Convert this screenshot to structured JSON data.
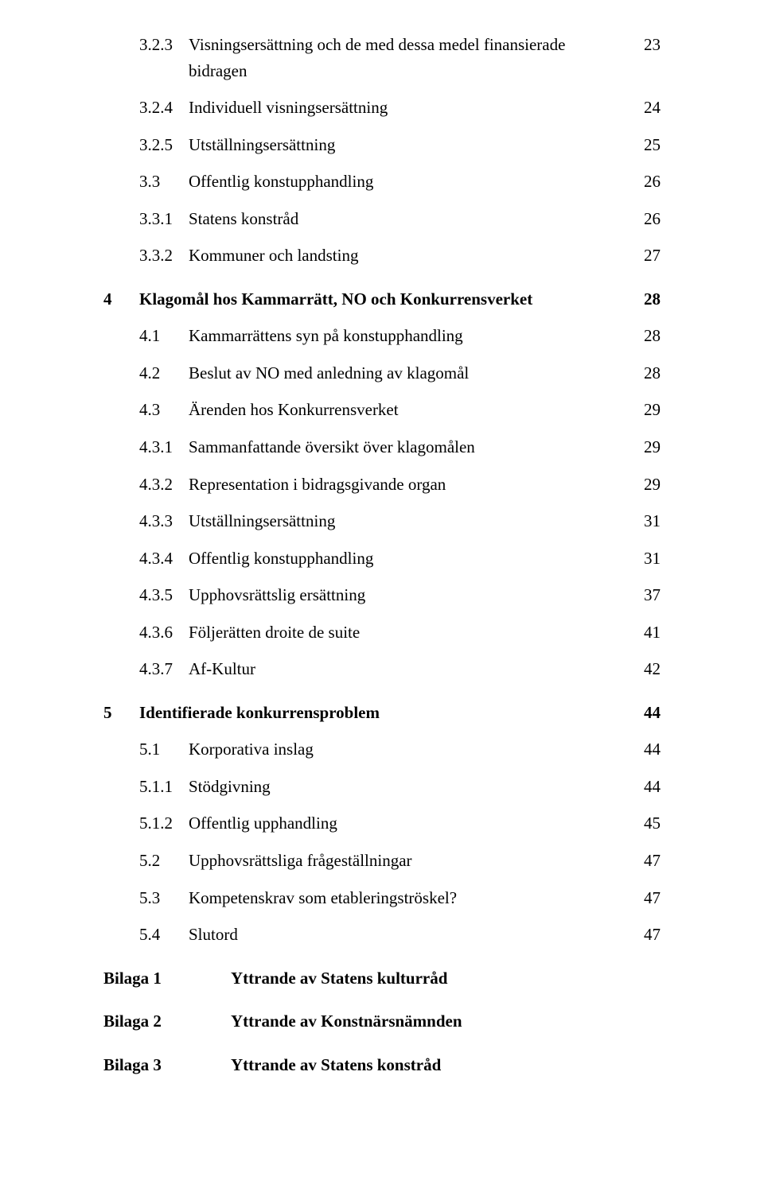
{
  "toc": [
    {
      "num": "3.2.3",
      "title": "Visningsersättning och de med dessa medel finansierade bidragen",
      "page": "23",
      "level": 3,
      "bold": false
    },
    {
      "num": "3.2.4",
      "title": "Individuell visningsersättning",
      "page": "24",
      "level": 3,
      "bold": false
    },
    {
      "num": "3.2.5",
      "title": "Utställningsersättning",
      "page": "25",
      "level": 3,
      "bold": false
    },
    {
      "num": "3.3",
      "title": "Offentlig konstupphandling",
      "page": "26",
      "level": 2,
      "bold": false
    },
    {
      "num": "3.3.1",
      "title": "Statens konstråd",
      "page": "26",
      "level": 3,
      "bold": false
    },
    {
      "num": "3.3.2",
      "title": "Kommuner och landsting",
      "page": "27",
      "level": 3,
      "bold": false
    },
    {
      "num": "4",
      "title": "Klagomål hos Kammarrätt, NO och Konkurrensverket",
      "page": "28",
      "level": 1,
      "bold": true,
      "gap": true
    },
    {
      "num": "4.1",
      "title": "Kammarrättens syn på konstupphandling",
      "page": "28",
      "level": 2,
      "bold": false
    },
    {
      "num": "4.2",
      "title": "Beslut av NO med anledning av klagomål",
      "page": "28",
      "level": 2,
      "bold": false
    },
    {
      "num": "4.3",
      "title": "Ärenden hos Konkurrensverket",
      "page": "29",
      "level": 2,
      "bold": false
    },
    {
      "num": "4.3.1",
      "title": "Sammanfattande översikt över klagomålen",
      "page": "29",
      "level": 3,
      "bold": false
    },
    {
      "num": "4.3.2",
      "title": "Representation i bidragsgivande organ",
      "page": "29",
      "level": 3,
      "bold": false
    },
    {
      "num": "4.3.3",
      "title": "Utställningsersättning",
      "page": "31",
      "level": 3,
      "bold": false
    },
    {
      "num": "4.3.4",
      "title": "Offentlig konstupphandling",
      "page": "31",
      "level": 3,
      "bold": false
    },
    {
      "num": "4.3.5",
      "title": "Upphovsrättslig ersättning",
      "page": "37",
      "level": 3,
      "bold": false
    },
    {
      "num": "4.3.6",
      "title": "Följerätten droite de suite",
      "page": "41",
      "level": 3,
      "bold": false
    },
    {
      "num": "4.3.7",
      "title": "Af-Kultur",
      "page": "42",
      "level": 3,
      "bold": false
    },
    {
      "num": "5",
      "title": "Identifierade konkurrensproblem",
      "page": "44",
      "level": 1,
      "bold": true,
      "gap": true
    },
    {
      "num": "5.1",
      "title": "Korporativa inslag",
      "page": "44",
      "level": 2,
      "bold": false
    },
    {
      "num": "5.1.1",
      "title": "Stödgivning",
      "page": "44",
      "level": 3,
      "bold": false
    },
    {
      "num": "5.1.2",
      "title": "Offentlig upphandling",
      "page": "45",
      "level": 3,
      "bold": false
    },
    {
      "num": "5.2",
      "title": "Upphovsrättsliga frågeställningar",
      "page": "47",
      "level": 2,
      "bold": false
    },
    {
      "num": "5.3",
      "title": "Kompetenskrav som etableringströskel?",
      "page": "47",
      "level": 2,
      "bold": false
    },
    {
      "num": "5.4",
      "title": "Slutord",
      "page": "47",
      "level": 2,
      "bold": false
    }
  ],
  "appendices": [
    {
      "label": "Bilaga 1",
      "title": "Yttrande av Statens kulturråd"
    },
    {
      "label": "Bilaga 2",
      "title": "Yttrande av Konstnärsnämnden"
    },
    {
      "label": "Bilaga 3",
      "title": "Yttrande av Statens konstråd"
    }
  ]
}
